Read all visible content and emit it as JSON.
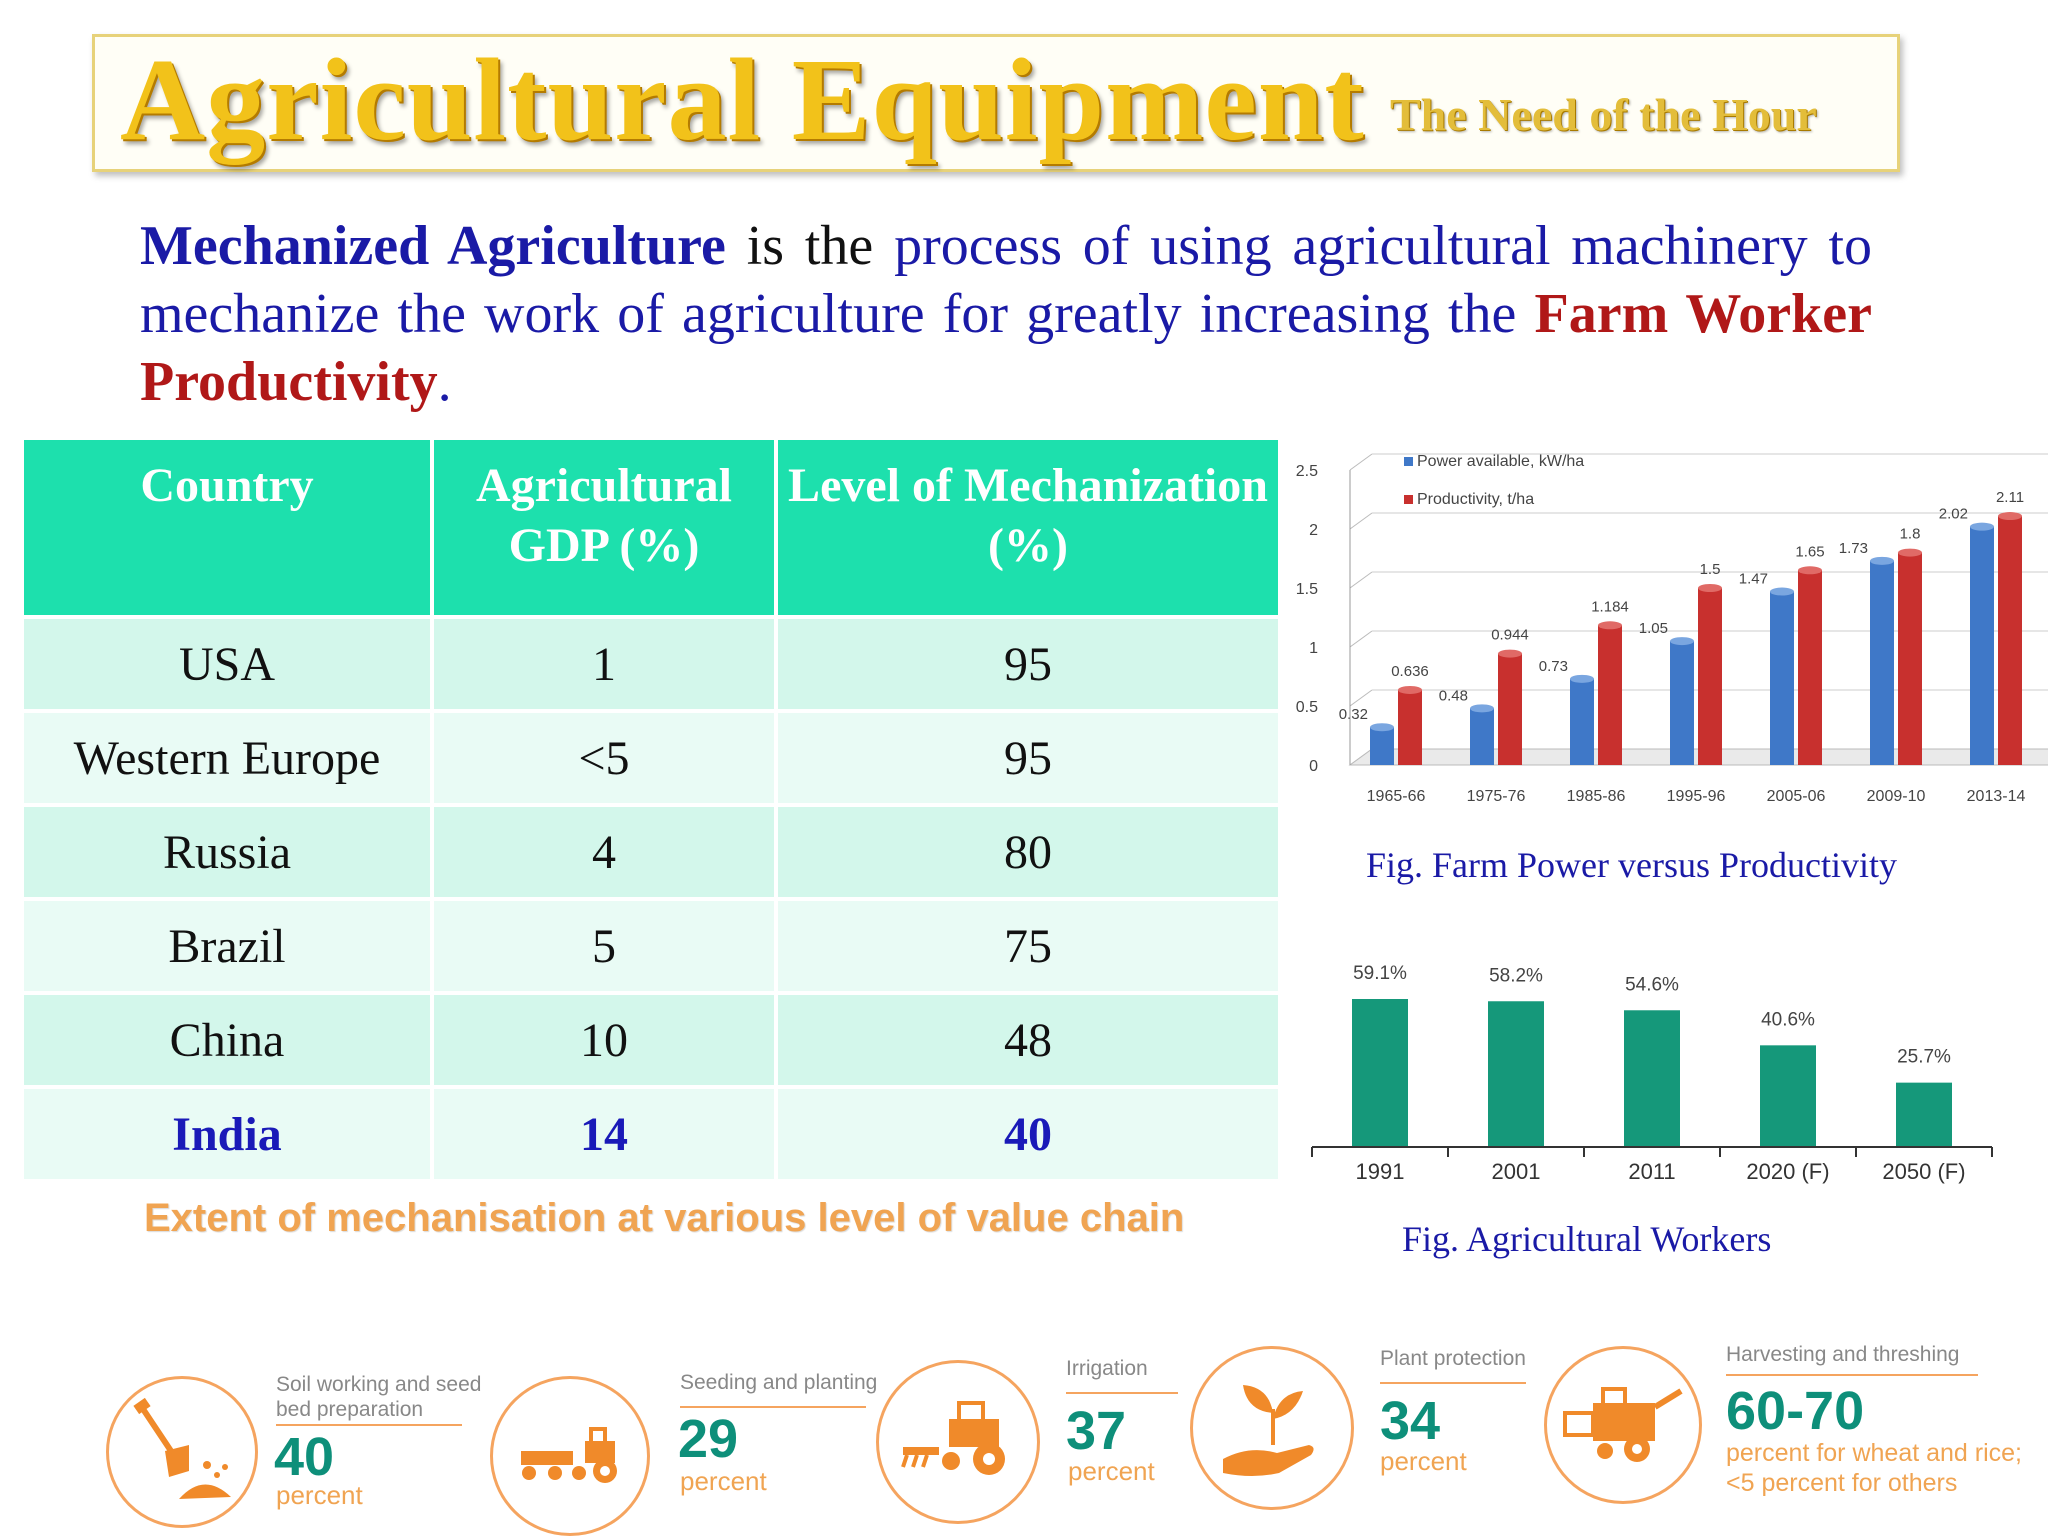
{
  "title": {
    "main": "Agricultural Equipment",
    "sub": "The Need of the Hour"
  },
  "definition": {
    "term": "Mechanized Agriculture",
    "part1": " is the ",
    "part2": "process of using agricultural machinery to mechanize the work of agriculture for greatly increasing the ",
    "highlight": "Farm Worker Productivity",
    "end": "."
  },
  "table": {
    "headers": [
      "Country",
      "Agricultural GDP (%)",
      "Level of Mechanization (%)"
    ],
    "rows": [
      {
        "country": "USA",
        "gdp": "1",
        "mech": "95"
      },
      {
        "country": "Western Europe",
        "gdp": "<5",
        "mech": "95"
      },
      {
        "country": "Russia",
        "gdp": "4",
        "mech": "80"
      },
      {
        "country": "Brazil",
        "gdp": "5",
        "mech": "75"
      },
      {
        "country": "China",
        "gdp": "10",
        "mech": "48"
      },
      {
        "country": "India",
        "gdp": "14",
        "mech": "40"
      }
    ]
  },
  "chart_data": [
    {
      "type": "bar",
      "title": "",
      "caption": "Fig. Farm Power versus Productivity",
      "categories": [
        "1965-66",
        "1975-76",
        "1985-86",
        "1995-96",
        "2005-06",
        "2009-10",
        "2013-14"
      ],
      "series": [
        {
          "name": "Power available, kW/ha",
          "color": "#3f78c8",
          "values": [
            0.32,
            0.48,
            0.73,
            1.05,
            1.47,
            1.73,
            2.02
          ],
          "labels": [
            "0.32",
            "0.48",
            "0.73",
            "1.05",
            "1.47",
            "1.73",
            "2.02"
          ]
        },
        {
          "name": "Productivity, t/ha",
          "color": "#c8302e",
          "values": [
            0.636,
            0.944,
            1.184,
            1.5,
            1.65,
            1.8,
            2.11
          ],
          "labels": [
            "0.636",
            "0.944",
            "1.184",
            "1.5",
            "1.65",
            "1.8",
            "2.11"
          ]
        }
      ],
      "yticks": [
        "0",
        "0.5",
        "1",
        "1.5",
        "2",
        "2.5"
      ],
      "ylim": [
        0,
        2.5
      ],
      "grid": true,
      "legend": "top-left"
    },
    {
      "type": "bar",
      "title": "",
      "caption": "Fig. Agricultural Workers",
      "categories": [
        "1991",
        "2001",
        "2011",
        "2020 (F)",
        "2050 (F)"
      ],
      "values": [
        59.1,
        58.2,
        54.6,
        40.6,
        25.7
      ],
      "labels": [
        "59.1%",
        "58.2%",
        "54.6%",
        "40.6%",
        "25.7%"
      ],
      "color": "#15987a",
      "grid": false
    }
  ],
  "value_chain": {
    "heading": "Extent of mechanisation at various level of value chain",
    "stages": [
      {
        "label1": "Soil working and seed",
        "label2": "bed preparation",
        "value": "40",
        "unit": "percent",
        "icon": "shovel-soil-icon"
      },
      {
        "label1": "Seeding and planting",
        "label2": "",
        "value": "29",
        "unit": "percent",
        "icon": "seeder-tractor-icon"
      },
      {
        "label1": "Irrigation",
        "label2": "",
        "value": "37",
        "unit": "percent",
        "icon": "tractor-icon"
      },
      {
        "label1": "Plant protection",
        "label2": "",
        "value": "34",
        "unit": "percent",
        "icon": "hand-plant-icon"
      },
      {
        "label1": "Harvesting and threshing",
        "label2": "",
        "value": "60-70",
        "unit": "percent for wheat and rice;",
        "note2": "<5 percent for others",
        "icon": "combine-harvester-icon"
      }
    ]
  },
  "colors": {
    "title_gold": "#f2c21a",
    "definition_blue": "#1a1aa6",
    "highlight_red": "#b01818",
    "table_header": "#1de0ad",
    "value_teal": "#0e8f7a",
    "accent_orange": "#f0a452"
  }
}
